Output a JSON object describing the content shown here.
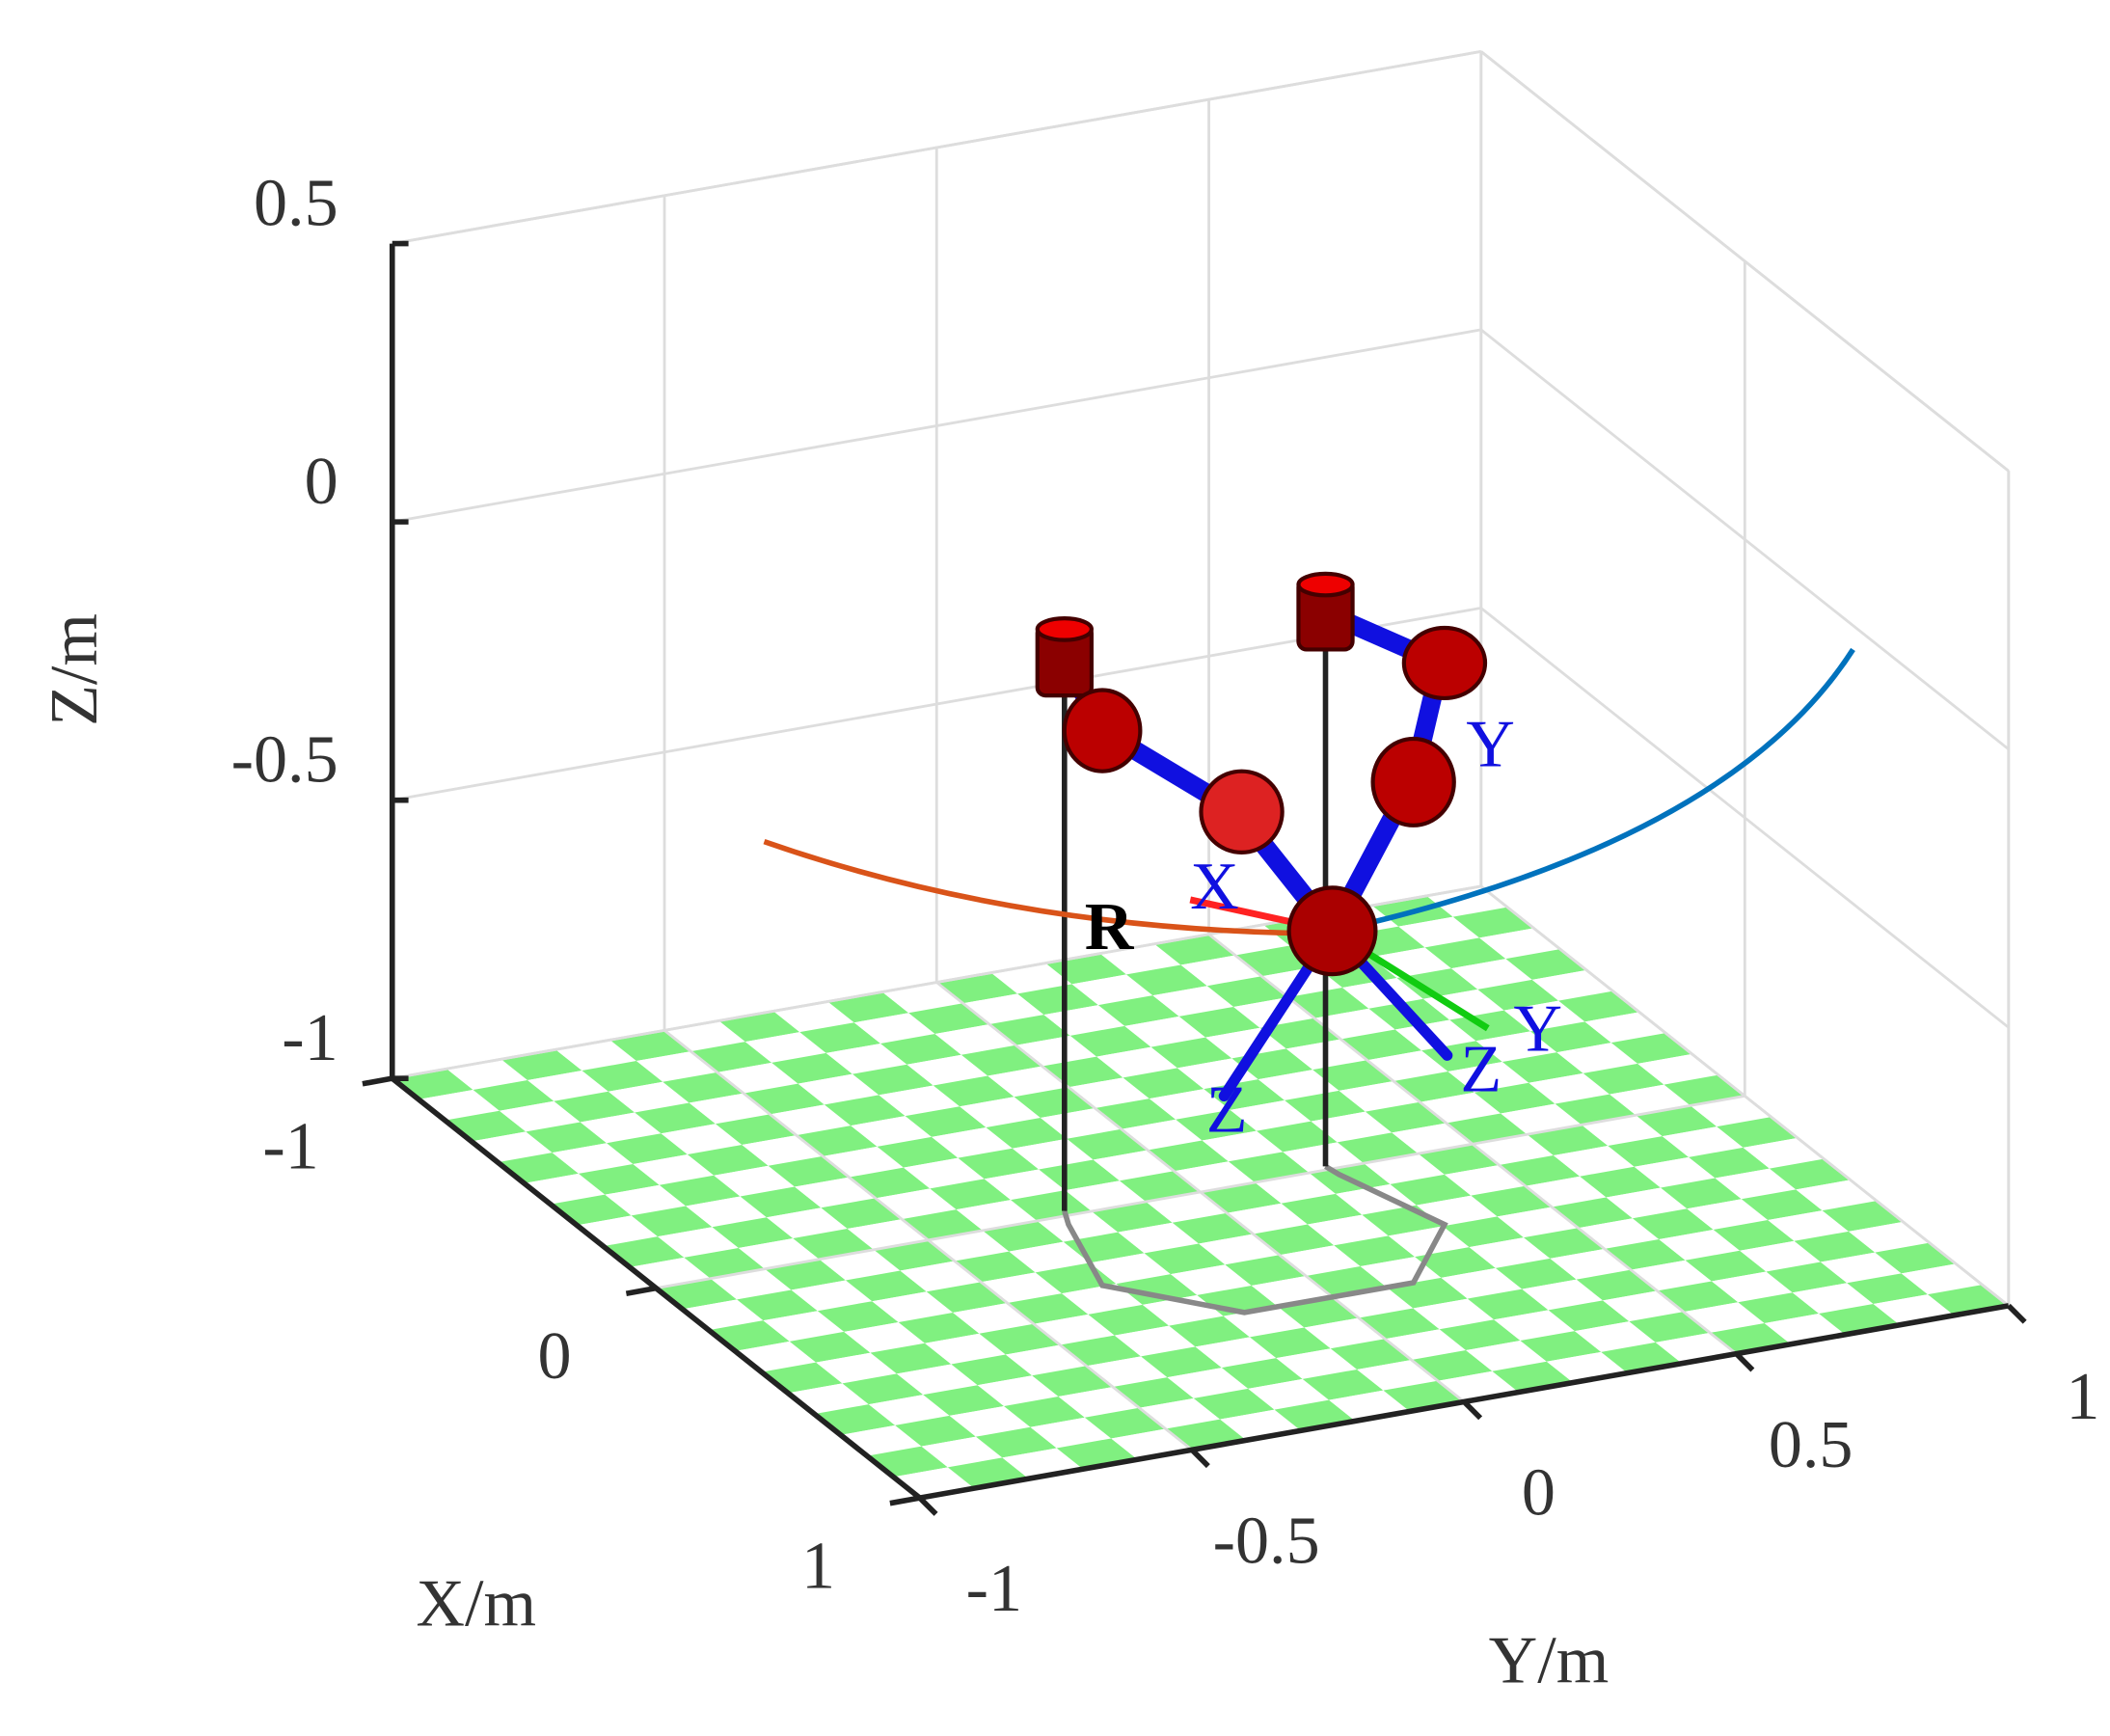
{
  "axes": {
    "xlabel": "X/m",
    "ylabel": "Y/m",
    "zlabel": "Z/m",
    "xlim": [
      -1,
      1
    ],
    "ylim": [
      -1,
      1
    ],
    "zlim": [
      -1,
      0.5
    ],
    "xticks": [
      -1,
      0,
      1
    ],
    "yticks": [
      -1,
      -0.5,
      0,
      0.5,
      1
    ],
    "zticks": [
      -1,
      -0.5,
      0,
      0.5
    ]
  },
  "annotations": [
    "R",
    "X",
    "Y",
    "Y",
    "Z",
    "Z"
  ]
}
